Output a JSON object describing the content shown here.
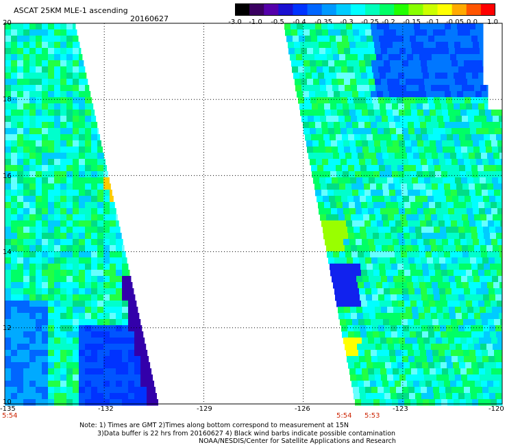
{
  "header": {
    "title": "ASCAT 25KM MLE-1 ascending",
    "date": "20160627"
  },
  "colorbar": {
    "labels": [
      "-3.0",
      "-1.0",
      "-0.5",
      "-0.4",
      "-0.35",
      "-0.3",
      "-0.25",
      "-0.2",
      "-0.15",
      "-0.1",
      "-0.05",
      "0.0",
      "1.0"
    ],
    "colors": [
      "#000000",
      "#3a0060",
      "#5500aa",
      "#1a10d0",
      "#0033ff",
      "#0066ff",
      "#0099ff",
      "#00ccff",
      "#00ffff",
      "#00ffbb",
      "#00ff66",
      "#22ff00",
      "#88ff00",
      "#ccff00",
      "#ffff00",
      "#ffaa00",
      "#ff5500",
      "#ff0000"
    ]
  },
  "map": {
    "lon_range": [
      -135,
      -120
    ],
    "lat_range": [
      10,
      20
    ],
    "lat_labels": [
      "20",
      "18",
      "16",
      "14",
      "12",
      "10"
    ],
    "lon_labels": [
      "-135",
      "-132",
      "-129",
      "-126",
      "-123",
      "-120"
    ],
    "pass_times": [
      "5:54",
      "5:54",
      "5:53"
    ],
    "swaths": [
      "west",
      "east"
    ]
  },
  "notes": {
    "line1": "Note: 1) Times are GMT 2)Times along bottom correspond to measurement at 15N",
    "line2": "3)Data buffer is 22 hrs from 20160627 4) Black wind barbs indicate possible contamination",
    "line3": "NOAA/NESDIS/Center for Satellite Applications and Research"
  }
}
